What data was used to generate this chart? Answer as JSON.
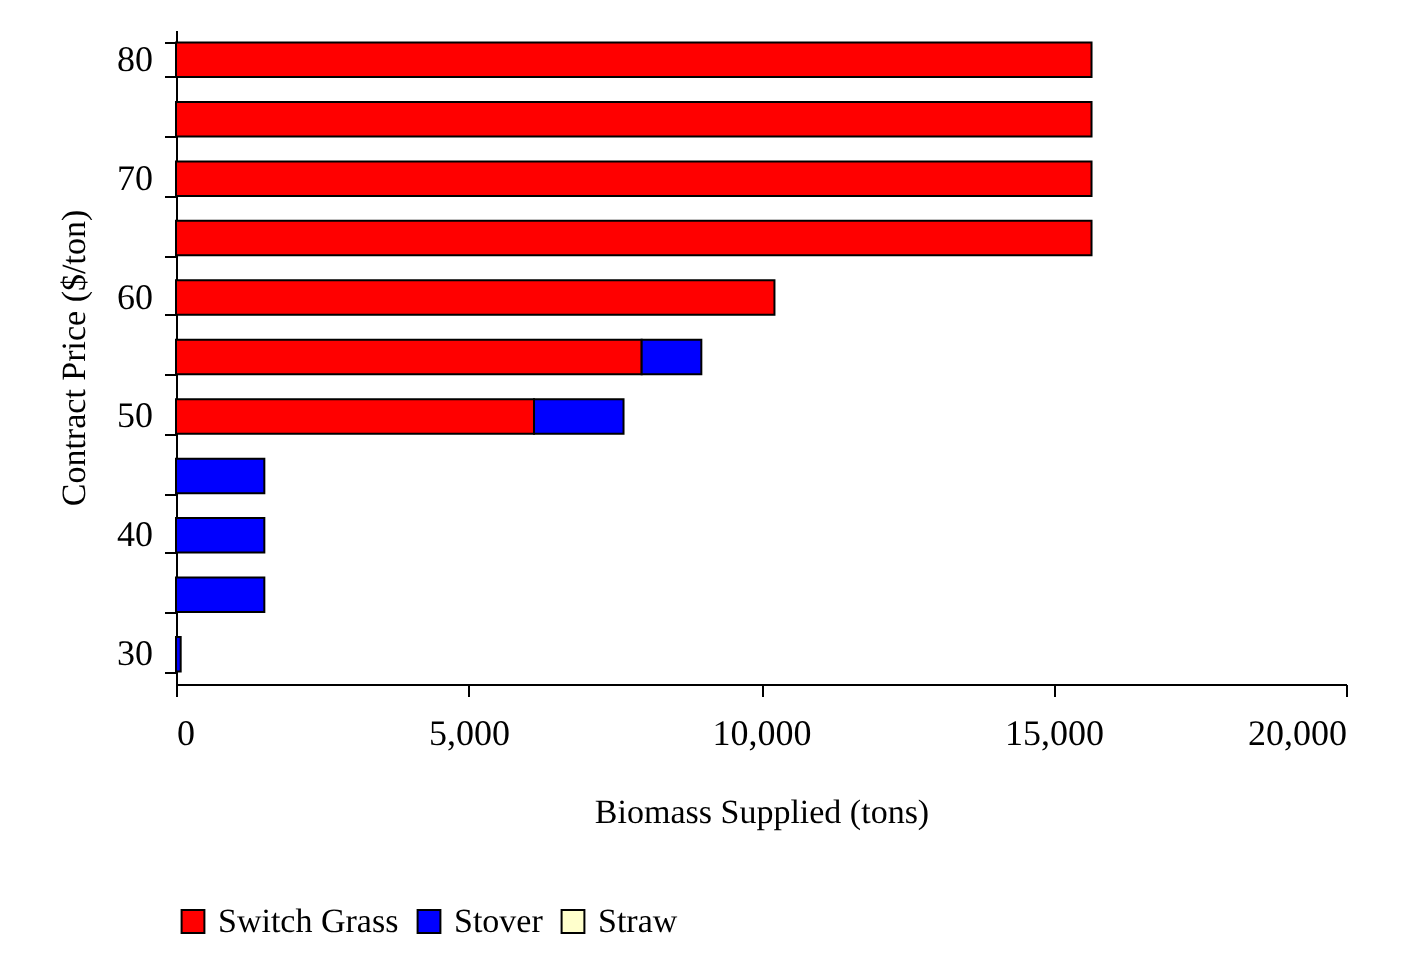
{
  "chart_data": {
    "type": "bar",
    "orientation": "horizontal",
    "stacked": true,
    "categories": [
      "80",
      null,
      "70",
      null,
      "60",
      null,
      "50",
      null,
      "40",
      null,
      "30"
    ],
    "series": [
      {
        "name": "Switch Grass",
        "color": "#ff0000",
        "values": [
          15650,
          15650,
          15650,
          15650,
          10230,
          7960,
          6120,
          null,
          null,
          null,
          null
        ]
      },
      {
        "name": "Stover",
        "color": "#0000ff",
        "values": [
          null,
          null,
          null,
          null,
          null,
          1020,
          1530,
          1510,
          1510,
          1510,
          80
        ]
      },
      {
        "name": "Straw",
        "color": "#ffffcc",
        "values": [
          null,
          null,
          null,
          null,
          null,
          null,
          null,
          null,
          null,
          null,
          null
        ]
      }
    ],
    "xlim": [
      0,
      20000
    ],
    "xticks": [
      {
        "value": 0,
        "label": "0"
      },
      {
        "value": 5000,
        "label": "5,000"
      },
      {
        "value": 10000,
        "label": "10,000"
      },
      {
        "value": 15000,
        "label": "15,000"
      },
      {
        "value": 20000,
        "label": "20,000"
      }
    ],
    "xlabel": "Biomass Supplied (tons)",
    "ylabel": "Contract Price ($/ton)",
    "grid": false,
    "legend": "bottom"
  }
}
